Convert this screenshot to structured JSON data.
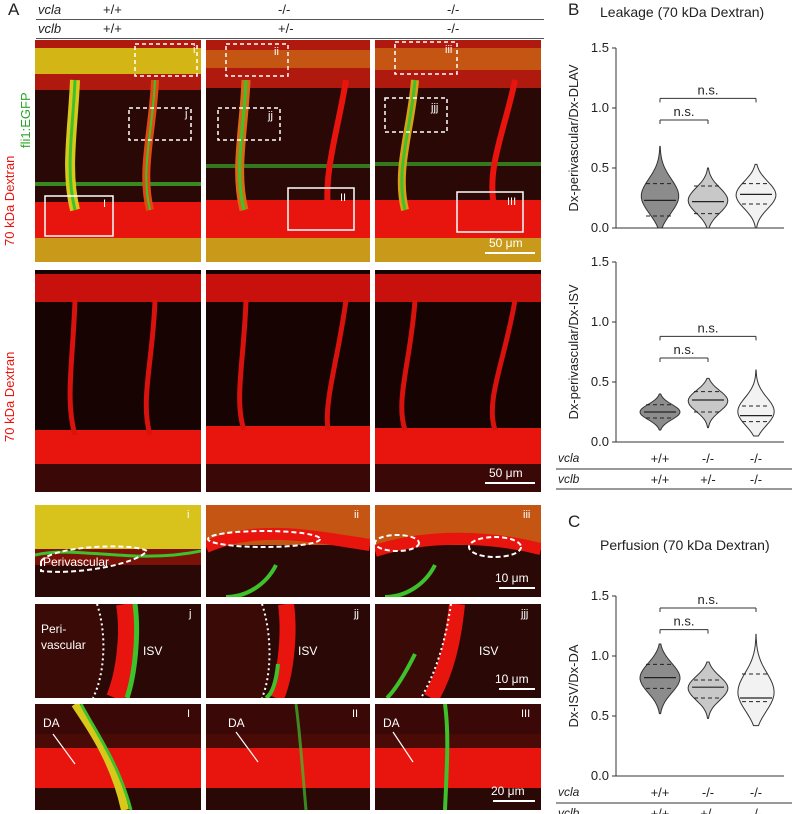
{
  "panelA": {
    "letter": "A",
    "genotype_rows": [
      {
        "gene": "vcla",
        "values": [
          "+/+",
          "-/-",
          "-/-"
        ]
      },
      {
        "gene": "vclb",
        "values": [
          "+/+",
          "+/-",
          "-/-"
        ]
      }
    ],
    "side_labels": {
      "dextran_top": "70 kDa Dextran",
      "egfp": "fli1:EGFP",
      "dextran_mid": "70 kDa Dextran"
    },
    "scalebars": {
      "top": "50 μm",
      "mid": "50 μm",
      "row3": "10 μm",
      "row4": "10 μm",
      "row5": "20 μm"
    },
    "box_labels_solid": [
      "I",
      "II",
      "III"
    ],
    "box_labels_dashed_i": [
      "i",
      "ii",
      "iii"
    ],
    "box_labels_dashed_j": [
      "j",
      "jj",
      "jjj"
    ],
    "inset_labels": {
      "perivascular": "Perivascular",
      "perivascular_split": [
        "Peri-",
        "vascular"
      ],
      "isv": "ISV",
      "da": "DA"
    },
    "colors": {
      "dextran": "#e8140e",
      "egfp": "#3ec22c",
      "merge": "#e3d21a"
    }
  },
  "panelB": {
    "letter": "B",
    "title": "Leakage (70 kDa Dextran)",
    "chart_data": [
      {
        "type": "violin",
        "ylabel": "Dx-perivascular/Dx-DLAV",
        "ylim": [
          0,
          1.5
        ],
        "yticks": [
          "0.0",
          "0.5",
          "1.0",
          "1.5"
        ],
        "groups": [
          {
            "vcla": "+/+",
            "vclb": "+/+",
            "median": 0.23,
            "q1": 0.1,
            "q3": 0.37,
            "min": 0.0,
            "max": 0.68,
            "fill": "#8c8c8c"
          },
          {
            "vcla": "-/-",
            "vclb": "+/-",
            "median": 0.22,
            "q1": 0.12,
            "q3": 0.35,
            "min": 0.0,
            "max": 0.5,
            "fill": "#c8c8c8"
          },
          {
            "vcla": "-/-",
            "vclb": "-/-",
            "median": 0.28,
            "q1": 0.2,
            "q3": 0.37,
            "min": 0.0,
            "max": 0.53,
            "fill": "#f2f2f2"
          }
        ],
        "comparisons": [
          {
            "from": 0,
            "to": 1,
            "y": 0.9,
            "label": "n.s."
          },
          {
            "from": 0,
            "to": 2,
            "y": 1.08,
            "label": "n.s."
          }
        ]
      },
      {
        "type": "violin",
        "ylabel": "Dx-perivascular/Dx-ISV",
        "ylim": [
          0,
          1.5
        ],
        "yticks": [
          "0.0",
          "0.5",
          "1.0",
          "1.5"
        ],
        "groups": [
          {
            "vcla": "+/+",
            "vclb": "+/+",
            "median": 0.25,
            "q1": 0.2,
            "q3": 0.31,
            "min": 0.1,
            "max": 0.4,
            "fill": "#8c8c8c"
          },
          {
            "vcla": "-/-",
            "vclb": "+/-",
            "median": 0.35,
            "q1": 0.25,
            "q3": 0.42,
            "min": 0.12,
            "max": 0.53,
            "fill": "#c8c8c8"
          },
          {
            "vcla": "-/-",
            "vclb": "-/-",
            "median": 0.22,
            "q1": 0.17,
            "q3": 0.3,
            "min": 0.05,
            "max": 0.6,
            "fill": "#f2f2f2"
          }
        ],
        "comparisons": [
          {
            "from": 0,
            "to": 1,
            "y": 0.7,
            "label": "n.s."
          },
          {
            "from": 0,
            "to": 2,
            "y": 0.88,
            "label": "n.s."
          }
        ]
      }
    ]
  },
  "panelC": {
    "letter": "C",
    "title": "Perfusion (70 kDa Dextran)",
    "chart_data": {
      "type": "violin",
      "ylabel": "Dx-ISV/Dx-DA",
      "ylim": [
        0,
        1.5
      ],
      "yticks": [
        "0.0",
        "0.5",
        "1.0",
        "1.5"
      ],
      "groups": [
        {
          "vcla": "+/+",
          "vclb": "+/+",
          "median": 0.82,
          "q1": 0.73,
          "q3": 0.93,
          "min": 0.52,
          "max": 1.1,
          "fill": "#8c8c8c"
        },
        {
          "vcla": "-/-",
          "vclb": "+/-",
          "median": 0.74,
          "q1": 0.65,
          "q3": 0.8,
          "min": 0.48,
          "max": 0.95,
          "fill": "#c8c8c8"
        },
        {
          "vcla": "-/-",
          "vclb": "-/-",
          "median": 0.65,
          "q1": 0.62,
          "q3": 0.85,
          "min": 0.42,
          "max": 1.18,
          "fill": "#f2f2f2"
        }
      ],
      "comparisons": [
        {
          "from": 0,
          "to": 1,
          "y": 1.22,
          "label": "n.s."
        },
        {
          "from": 0,
          "to": 2,
          "y": 1.4,
          "label": "n.s."
        }
      ]
    }
  },
  "genotype_labels": {
    "vcla": "vcla",
    "vclb": "vclb"
  }
}
